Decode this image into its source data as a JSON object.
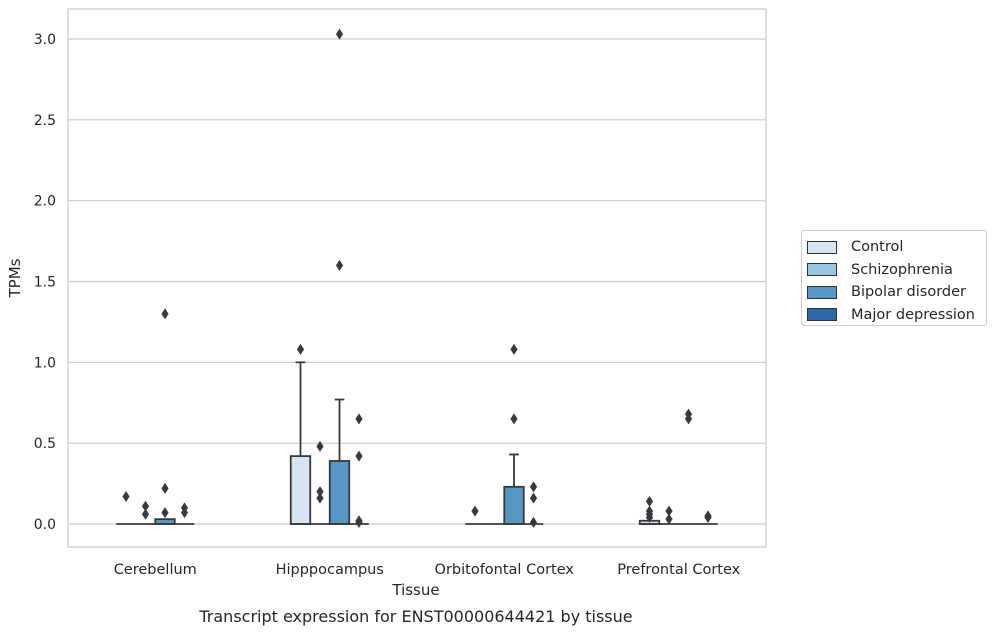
{
  "chart_data": {
    "type": "box",
    "title": "Transcript expression for ENST00000644421 by tissue",
    "xlabel": "Tissue",
    "ylabel": "TPMs",
    "categories": [
      "Cerebellum",
      "Hipppocampus",
      "Orbitofontal Cortex",
      "Prefrontal Cortex"
    ],
    "ylim": [
      -0.15,
      3.18
    ],
    "yticks": [
      "0.0",
      "0.5",
      "1.0",
      "1.5",
      "2.0",
      "2.5",
      "3.0"
    ],
    "grid": "horizontal",
    "legend_position": "right",
    "series": [
      {
        "name": "Control",
        "color": "#d6e5f4",
        "boxes": [
          {
            "q1": 0,
            "median": 0,
            "q3": 0,
            "whisker_low": 0,
            "whisker_high": 0,
            "outliers": [
              0.17
            ]
          },
          {
            "q1": 0,
            "median": 0,
            "q3": 0.42,
            "whisker_low": 0,
            "whisker_high": 1.0,
            "outliers": [
              1.08
            ]
          },
          {
            "q1": 0,
            "median": 0,
            "q3": 0,
            "whisker_low": 0,
            "whisker_high": 0,
            "outliers": [
              0.08
            ]
          },
          {
            "q1": 0,
            "median": 0,
            "q3": 0.02,
            "whisker_low": 0,
            "whisker_high": 0.02,
            "outliers": [
              0.04,
              0.06,
              0.08,
              0.14
            ]
          }
        ]
      },
      {
        "name": "Schizophrenia",
        "color": "#9ac7e0",
        "boxes": [
          {
            "q1": 0,
            "median": 0,
            "q3": 0,
            "whisker_low": 0,
            "whisker_high": 0,
            "outliers": [
              0.06,
              0.11
            ]
          },
          {
            "q1": 0,
            "median": 0,
            "q3": 0,
            "whisker_low": 0,
            "whisker_high": 0,
            "outliers": [
              0.16,
              0.2,
              0.48
            ]
          },
          {
            "q1": 0,
            "median": 0,
            "q3": 0,
            "whisker_low": 0,
            "whisker_high": 0,
            "outliers": []
          },
          {
            "q1": 0,
            "median": 0,
            "q3": 0,
            "whisker_low": 0,
            "whisker_high": 0,
            "outliers": [
              0.03,
              0.08
            ]
          }
        ]
      },
      {
        "name": "Bipolar disorder",
        "color": "#5596c4",
        "boxes": [
          {
            "q1": 0,
            "median": 0,
            "q3": 0.03,
            "whisker_low": 0,
            "whisker_high": 0.03,
            "outliers": [
              0.07,
              0.22,
              1.3
            ]
          },
          {
            "q1": 0,
            "median": 0,
            "q3": 0.39,
            "whisker_low": 0,
            "whisker_high": 0.77,
            "outliers": [
              1.6,
              3.03
            ]
          },
          {
            "q1": 0,
            "median": 0,
            "q3": 0.23,
            "whisker_low": 0,
            "whisker_high": 0.43,
            "outliers": [
              0.65,
              1.08
            ]
          },
          {
            "q1": 0,
            "median": 0,
            "q3": 0,
            "whisker_low": 0,
            "whisker_high": 0,
            "outliers": [
              0.65,
              0.68
            ]
          }
        ]
      },
      {
        "name": "Major depression",
        "color": "#2a6aa8",
        "boxes": [
          {
            "q1": 0,
            "median": 0,
            "q3": 0,
            "whisker_low": 0,
            "whisker_high": 0,
            "outliers": [
              0.07,
              0.1
            ]
          },
          {
            "q1": 0,
            "median": 0,
            "q3": 0,
            "whisker_low": 0,
            "whisker_high": 0,
            "outliers": [
              0.01,
              0.02,
              0.42,
              0.65
            ]
          },
          {
            "q1": 0,
            "median": 0,
            "q3": 0,
            "whisker_low": 0,
            "whisker_high": 0,
            "outliers": [
              0.01,
              0.16,
              0.23
            ]
          },
          {
            "q1": 0,
            "median": 0,
            "q3": 0,
            "whisker_low": 0,
            "whisker_high": 0,
            "outliers": [
              0.04,
              0.05
            ]
          }
        ]
      }
    ]
  }
}
